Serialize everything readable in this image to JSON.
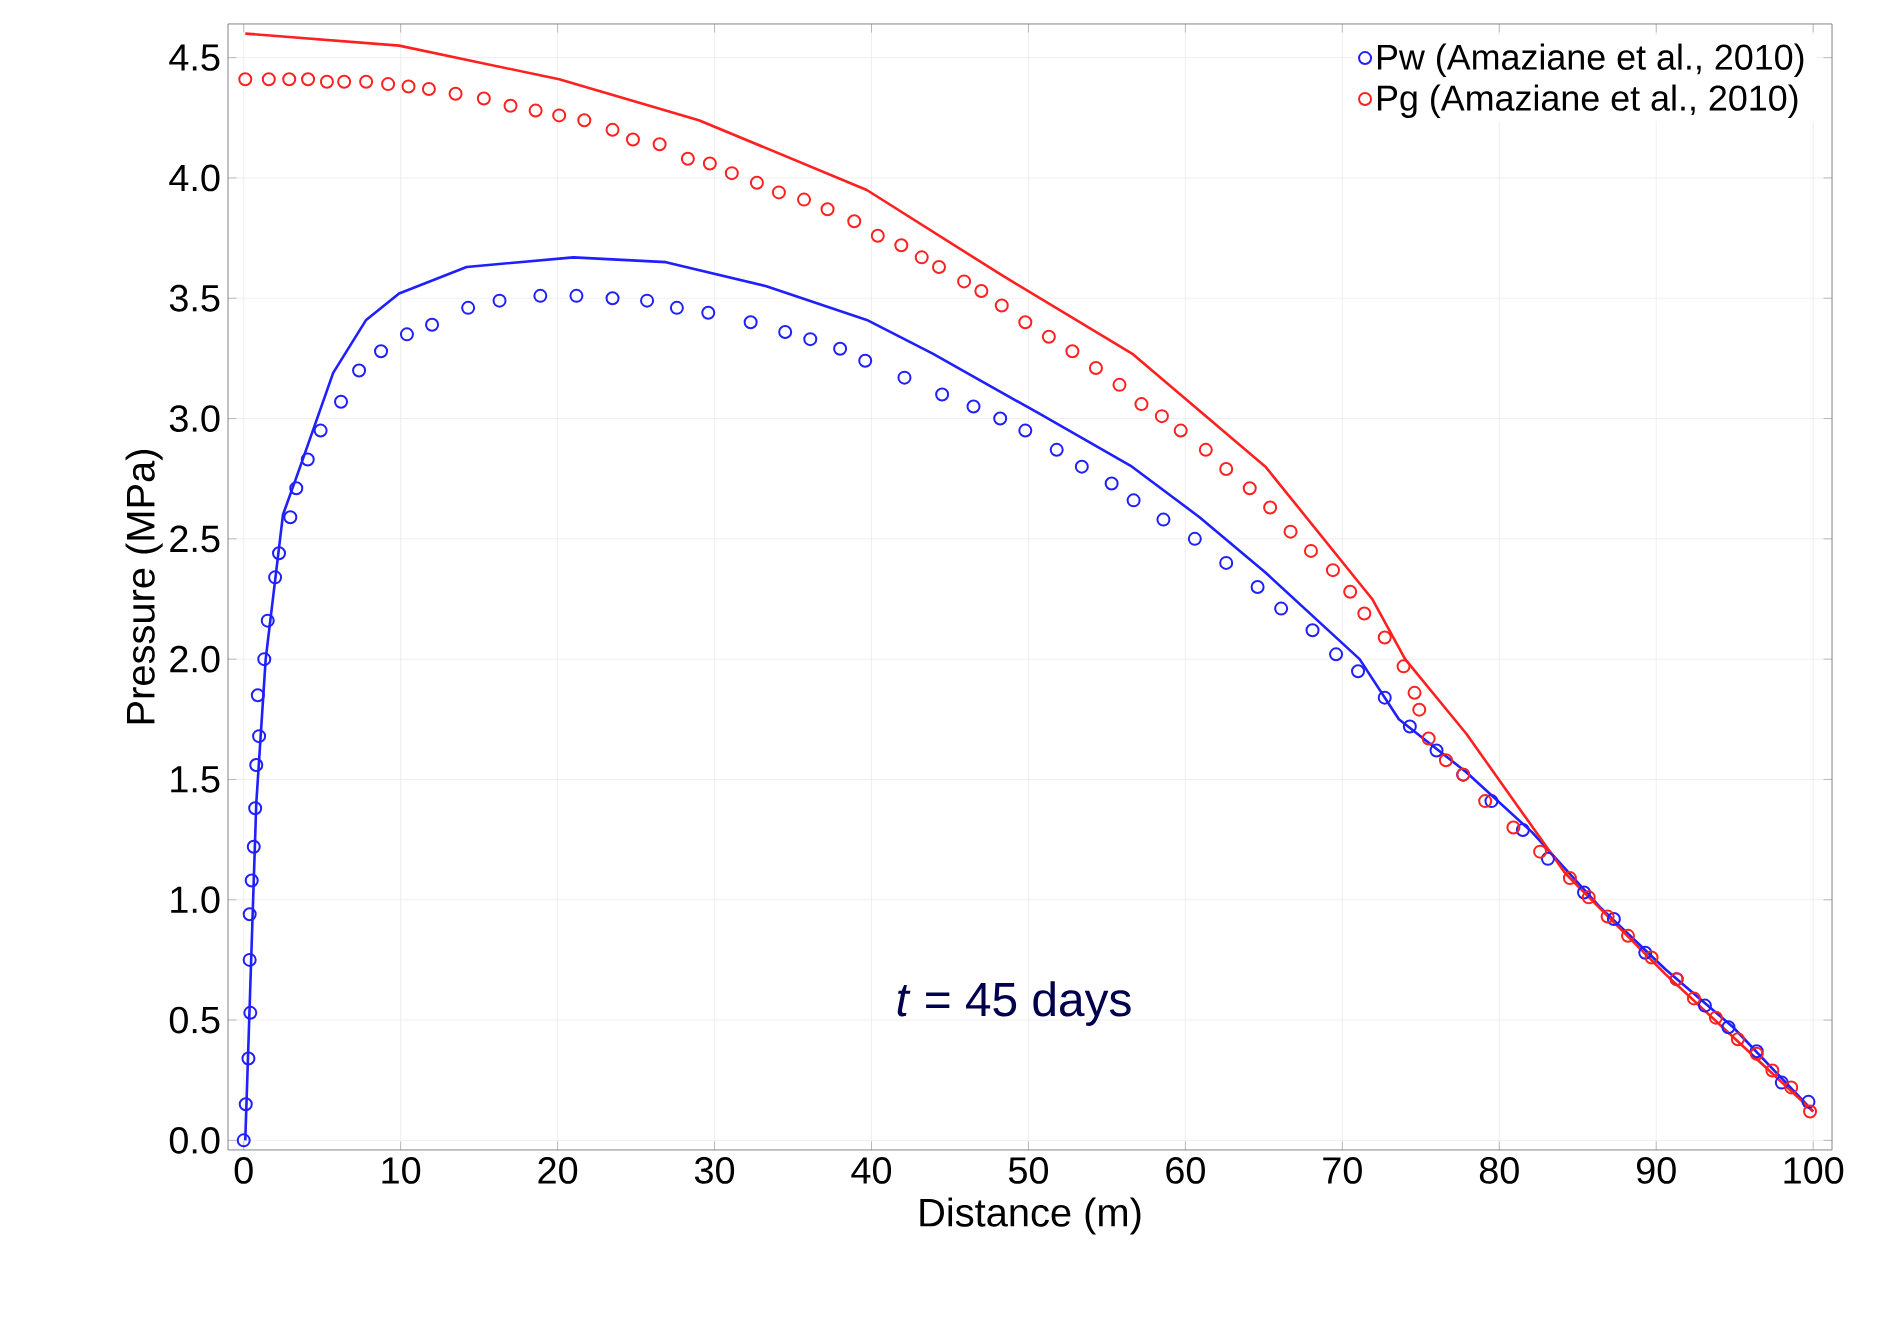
{
  "chart_data": {
    "type": "scatter",
    "xlabel": "Distance (m)",
    "ylabel": "Pressure (MPa)",
    "xlim": [
      -1,
      101.2
    ],
    "ylim": [
      -0.04,
      4.64
    ],
    "xticks": [
      0,
      10,
      20,
      30,
      40,
      50,
      60,
      70,
      80,
      90,
      100
    ],
    "yticks": [
      {
        "value": 0,
        "label": "0.0"
      },
      {
        "value": 0.5,
        "label": "0.5"
      },
      {
        "value": 1,
        "label": "1.0"
      },
      {
        "value": 1.5,
        "label": "1.5"
      },
      {
        "value": 2,
        "label": "2.0"
      },
      {
        "value": 2.5,
        "label": "2.5"
      },
      {
        "value": 3,
        "label": "3.0"
      },
      {
        "value": 3.5,
        "label": "3.5"
      },
      {
        "value": 4,
        "label": "4.0"
      },
      {
        "value": 4.5,
        "label": "4.5"
      }
    ],
    "grid": true,
    "legend": "top right",
    "marker": "circle",
    "line_style": "solid",
    "annotations": [
      "*t* = 45 days"
    ],
    "series": [
      {
        "type": "line",
        "marker": "none",
        "color": "#1f1fff",
        "x": [
          0.1,
          0.4,
          0.8,
          1.4,
          2.5,
          3.6,
          5.7,
          7.8,
          9.9,
          14.2,
          21.0,
          26.9,
          33.3,
          39.7,
          43.9,
          50.7,
          56.6,
          60.9,
          65.1,
          71.1,
          73.6,
          77.9,
          82.1,
          86.4,
          90.6,
          94.9,
          100
        ],
        "values": [
          0,
          0.6,
          1.4,
          2.0,
          2.6,
          2.8,
          3.19,
          3.41,
          3.52,
          3.63,
          3.67,
          3.65,
          3.55,
          3.41,
          3.27,
          3.02,
          2.8,
          2.59,
          2.36,
          2.0,
          1.75,
          1.53,
          1.28,
          0.97,
          0.71,
          0.47,
          0.12
        ]
      },
      {
        "type": "line",
        "marker": "none",
        "color": "#ff2020",
        "x": [
          0.1,
          9.9,
          20.1,
          29.0,
          39.7,
          48.2,
          56.6,
          65.1,
          71.9,
          74.0,
          77.9,
          84.2,
          90.6,
          100
        ],
        "values": [
          4.6,
          4.55,
          4.41,
          4.24,
          3.95,
          3.6,
          3.27,
          2.8,
          2.25,
          2.0,
          1.69,
          1.11,
          0.69,
          0.12
        ]
      },
      {
        "name": "Pw (Amaziane et al., 2010)",
        "color": "#1f1fff",
        "x": [
          0.0,
          0.13,
          0.3,
          0.42,
          0.38,
          0.38,
          0.51,
          0.64,
          0.73,
          0.8,
          0.98,
          0.9,
          1.31,
          1.53,
          2.0,
          2.25,
          2.97,
          3.35,
          4.08,
          4.9,
          6.2,
          7.35,
          8.75,
          10.4,
          12.0,
          14.3,
          16.3,
          18.9,
          21.2,
          23.5,
          25.7,
          27.6,
          29.6,
          32.3,
          34.5,
          36.1,
          38.0,
          39.6,
          42.1,
          44.5,
          46.5,
          48.2,
          49.8,
          51.8,
          53.4,
          55.3,
          56.7,
          58.6,
          60.6,
          62.6,
          64.6,
          66.1,
          68.1,
          69.6,
          71.0,
          72.7,
          74.3,
          76.0,
          77.7,
          79.5,
          81.5,
          83.1,
          85.4,
          87.3,
          89.3,
          91.3,
          93.1,
          94.6,
          96.4,
          98.0,
          99.7
        ],
        "values": [
          0.0,
          0.15,
          0.34,
          0.53,
          0.75,
          0.94,
          1.08,
          1.22,
          1.38,
          1.56,
          1.68,
          1.85,
          2.0,
          2.16,
          2.34,
          2.44,
          2.59,
          2.71,
          2.83,
          2.95,
          3.07,
          3.2,
          3.28,
          3.35,
          3.39,
          3.46,
          3.49,
          3.51,
          3.51,
          3.5,
          3.49,
          3.46,
          3.44,
          3.4,
          3.36,
          3.33,
          3.29,
          3.24,
          3.17,
          3.1,
          3.05,
          3.0,
          2.95,
          2.87,
          2.8,
          2.73,
          2.66,
          2.58,
          2.5,
          2.4,
          2.3,
          2.21,
          2.12,
          2.02,
          1.95,
          1.84,
          1.72,
          1.62,
          1.52,
          1.41,
          1.29,
          1.17,
          1.03,
          0.92,
          0.78,
          0.67,
          0.56,
          0.47,
          0.37,
          0.24,
          0.16
        ]
      },
      {
        "name": "Pg (Amaziane et al., 2010)",
        "color": "#ff2020",
        "x": [
          0.1,
          1.6,
          2.9,
          4.1,
          5.3,
          6.4,
          7.8,
          9.2,
          10.5,
          11.8,
          13.5,
          15.3,
          17.0,
          18.6,
          20.1,
          21.7,
          23.5,
          24.8,
          26.5,
          28.3,
          29.7,
          31.1,
          32.7,
          34.1,
          35.7,
          37.2,
          38.9,
          40.4,
          41.9,
          43.2,
          44.3,
          45.9,
          47.0,
          48.3,
          49.8,
          51.3,
          52.8,
          54.3,
          55.8,
          57.2,
          58.5,
          59.7,
          61.3,
          62.6,
          64.1,
          65.4,
          66.7,
          68.0,
          69.4,
          70.5,
          71.4,
          72.7,
          73.9,
          74.6,
          74.9,
          75.5,
          76.6,
          77.7,
          79.1,
          80.9,
          82.6,
          84.5,
          85.7,
          86.9,
          88.2,
          89.7,
          91.3,
          92.4,
          93.8,
          95.2,
          96.4,
          97.4,
          98.6,
          99.8
        ],
        "values": [
          4.41,
          4.41,
          4.41,
          4.41,
          4.4,
          4.4,
          4.4,
          4.39,
          4.38,
          4.37,
          4.35,
          4.33,
          4.3,
          4.28,
          4.26,
          4.24,
          4.2,
          4.16,
          4.14,
          4.08,
          4.06,
          4.02,
          3.98,
          3.94,
          3.91,
          3.87,
          3.82,
          3.76,
          3.72,
          3.67,
          3.63,
          3.57,
          3.53,
          3.47,
          3.4,
          3.34,
          3.28,
          3.21,
          3.14,
          3.06,
          3.01,
          2.95,
          2.87,
          2.79,
          2.71,
          2.63,
          2.53,
          2.45,
          2.37,
          2.28,
          2.19,
          2.09,
          1.97,
          1.86,
          1.79,
          1.67,
          1.58,
          1.52,
          1.41,
          1.3,
          1.2,
          1.09,
          1.01,
          0.93,
          0.85,
          0.76,
          0.67,
          0.59,
          0.51,
          0.42,
          0.36,
          0.29,
          0.22,
          0.12
        ]
      }
    ]
  }
}
